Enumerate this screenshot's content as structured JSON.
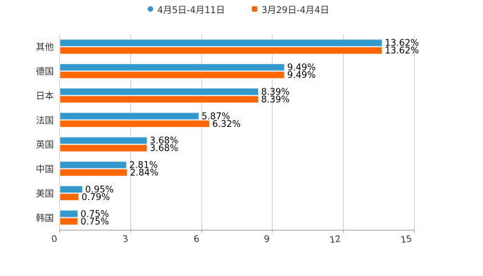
{
  "chart_data": {
    "type": "bar",
    "orientation": "horizontal",
    "title": "",
    "xlabel": "",
    "ylabel": "",
    "categories": [
      "其他",
      "德国",
      "日本",
      "法国",
      "英国",
      "中国",
      "美国",
      "韩国"
    ],
    "series": [
      {
        "name": "4月5日-4月11日",
        "color": "#3398cc",
        "values": [
          13.62,
          9.49,
          8.39,
          5.87,
          3.68,
          2.81,
          0.95,
          0.75
        ],
        "labels": [
          "13.62%",
          "9.49%",
          "8.39%",
          "5.87%",
          "3.68%",
          "2.81%",
          "0.95%",
          "0.75%"
        ]
      },
      {
        "name": "3月29日-4月4日",
        "color": "#ff6600",
        "values": [
          13.62,
          9.49,
          8.39,
          6.32,
          3.68,
          2.84,
          0.79,
          0.75
        ],
        "labels": [
          "13.62%",
          "9.49%",
          "8.39%",
          "6.32%",
          "3.68%",
          "2.84%",
          "0.79%",
          "0.75%"
        ]
      }
    ],
    "xlim": [
      0,
      15
    ],
    "xticks": [
      "0",
      "3",
      "6",
      "9",
      "12",
      "15"
    ],
    "grid": true,
    "legend_position": "top"
  },
  "legend": {
    "items": [
      {
        "label": "4月5日-4月11日",
        "color": "#3398cc",
        "marker": "circle"
      },
      {
        "label": "3月29日-4月4日",
        "color": "#ff6600",
        "marker": "square"
      }
    ]
  }
}
